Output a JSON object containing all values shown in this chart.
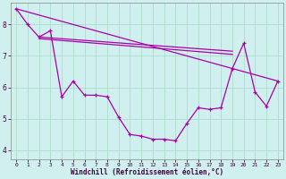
{
  "xlabel": "Windchill (Refroidissement éolien,°C)",
  "background_color": "#cff0ee",
  "line_color": "#aa00aa",
  "grid_color": "#aaddcc",
  "xlim": [
    -0.5,
    23.5
  ],
  "ylim": [
    3.7,
    8.7
  ],
  "yticks": [
    4,
    5,
    6,
    7,
    8
  ],
  "xticks": [
    0,
    1,
    2,
    3,
    4,
    5,
    6,
    7,
    8,
    9,
    10,
    11,
    12,
    13,
    14,
    15,
    16,
    17,
    18,
    19,
    20,
    21,
    22,
    23
  ],
  "series_main": {
    "x": [
      0,
      1,
      2,
      3,
      4,
      5,
      6,
      7,
      8,
      9,
      10,
      11,
      12,
      13,
      14,
      15,
      16,
      17,
      18,
      19,
      20,
      21,
      22,
      23
    ],
    "y": [
      8.5,
      8.0,
      7.6,
      7.8,
      5.7,
      6.2,
      5.75,
      5.75,
      5.7,
      5.05,
      4.5,
      4.45,
      4.35,
      4.35,
      4.3,
      4.85,
      5.35,
      5.3,
      5.35,
      6.6,
      7.4,
      5.85,
      5.4,
      6.2
    ]
  },
  "series_line1": {
    "x": [
      0,
      23
    ],
    "y": [
      8.5,
      6.2
    ]
  },
  "series_line2": {
    "x": [
      2,
      19
    ],
    "y": [
      7.6,
      7.15
    ]
  },
  "series_line3": {
    "x": [
      2,
      19
    ],
    "y": [
      7.55,
      7.05
    ]
  }
}
